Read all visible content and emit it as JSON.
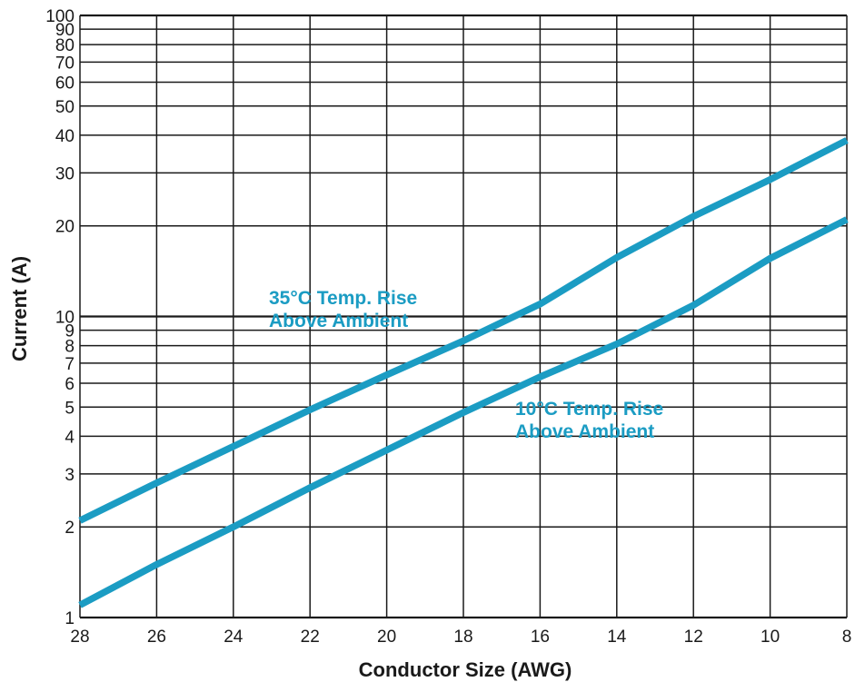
{
  "chart_data": {
    "type": "line",
    "xlabel": "Conductor Size (AWG)",
    "ylabel": "Current (A)",
    "x_ticks": [
      28,
      26,
      24,
      22,
      20,
      18,
      16,
      14,
      12,
      10,
      8
    ],
    "xlim": [
      28,
      8
    ],
    "x_reversed": true,
    "y_scale": "log",
    "ylim": [
      1,
      100
    ],
    "y_ticks": [
      1,
      2,
      3,
      4,
      5,
      6,
      7,
      8,
      9,
      10,
      20,
      30,
      40,
      50,
      60,
      70,
      80,
      90,
      100
    ],
    "grid": true,
    "line_color": "#1b9cc3",
    "annotation_color": "#1b9cc3",
    "series": [
      {
        "name": "35°C Temp. Rise Above Ambient",
        "x": [
          28,
          26,
          24,
          22,
          20,
          18,
          16,
          14,
          12,
          10,
          8
        ],
        "y": [
          2.1,
          2.8,
          3.7,
          4.9,
          6.4,
          8.3,
          11.0,
          15.7,
          21.5,
          28.5,
          38.5
        ],
        "label_lines": [
          "35°C Temp. Rise",
          "Above Ambient"
        ]
      },
      {
        "name": "10°C Temp. Rise Above Ambient",
        "x": [
          28,
          26,
          24,
          22,
          20,
          18,
          16,
          14,
          12,
          10,
          8
        ],
        "y": [
          1.1,
          1.5,
          2.0,
          2.7,
          3.6,
          4.8,
          6.3,
          8.1,
          10.9,
          15.6,
          21.0
        ],
        "label_lines": [
          "10°C Temp. Rise",
          "Above Ambient"
        ]
      }
    ]
  }
}
